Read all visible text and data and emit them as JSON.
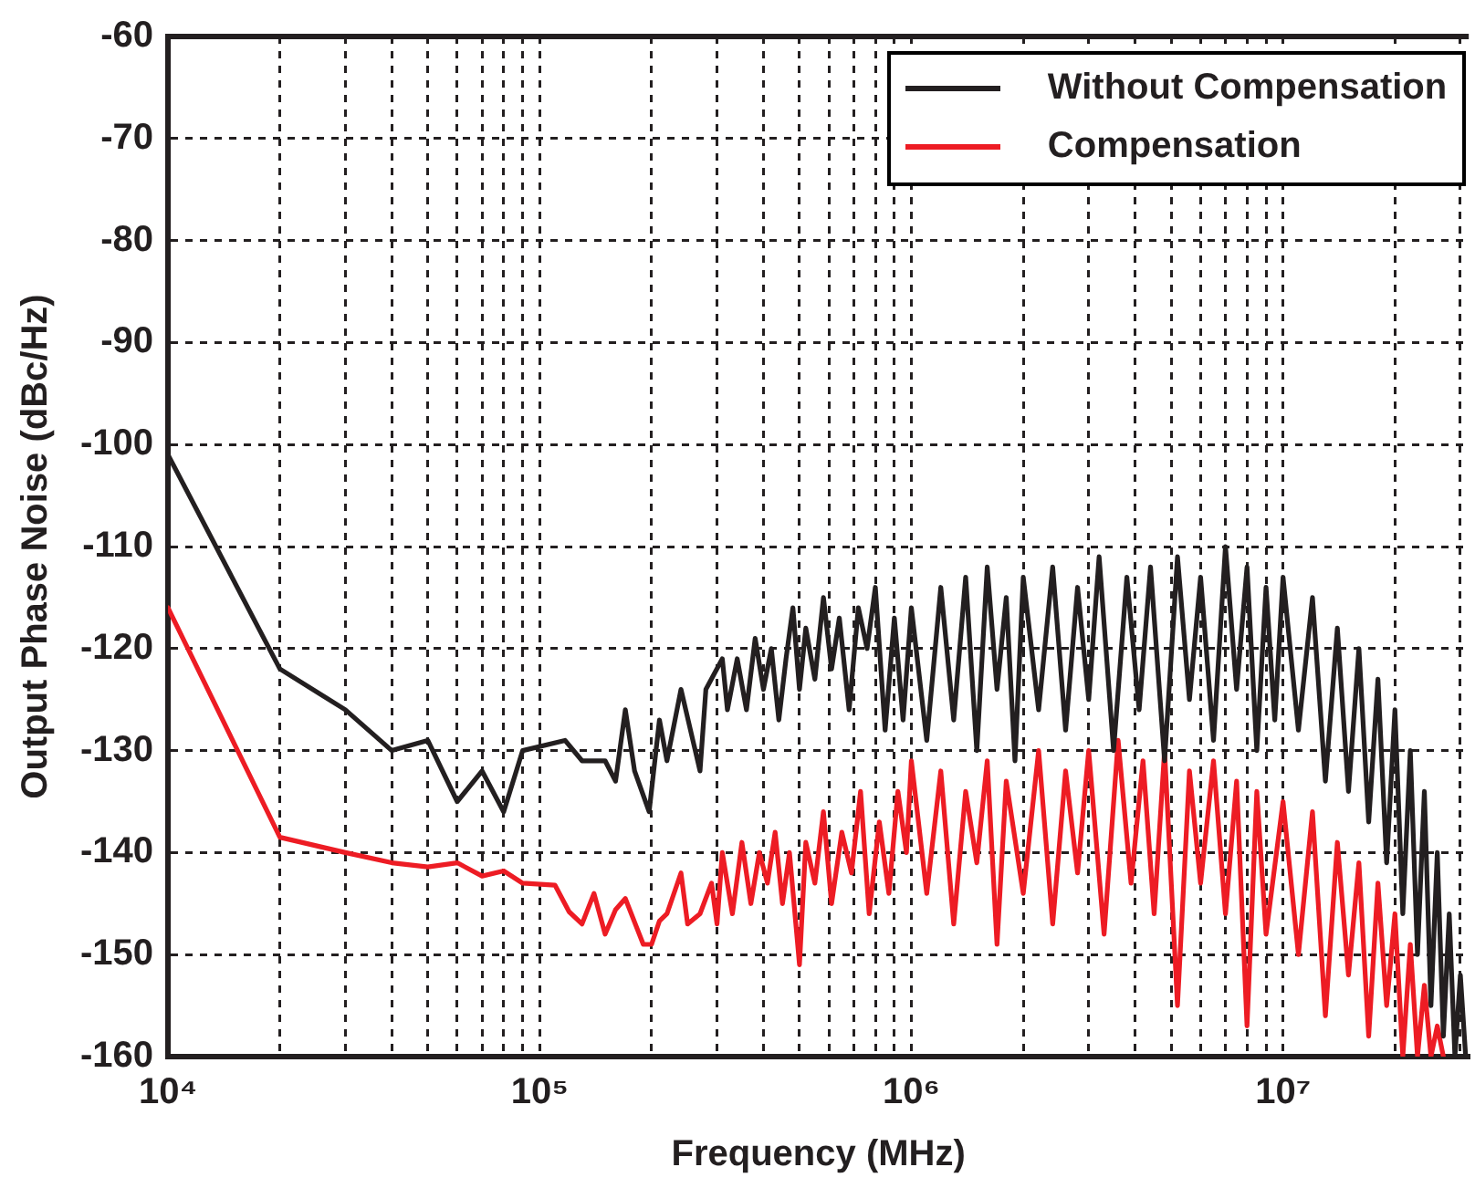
{
  "chart_data": {
    "type": "line",
    "xlabel": "Frequency (MHz)",
    "ylabel": "Output Phase Noise (dBc/Hz)",
    "log": "x",
    "grid": true,
    "legend": "top right",
    "marker": "none",
    "line_style": "solid",
    "xlim": [
      10000,
      31600000
    ],
    "ylim": [
      -160,
      -60
    ],
    "xticks": [
      {
        "value": 10000,
        "label": "10⁴"
      },
      {
        "value": 20000,
        "label": null
      },
      {
        "value": 30000,
        "label": null
      },
      {
        "value": 40000,
        "label": null
      },
      {
        "value": 50000,
        "label": null
      },
      {
        "value": 60000,
        "label": null
      },
      {
        "value": 70000,
        "label": null
      },
      {
        "value": 80000,
        "label": null
      },
      {
        "value": 90000,
        "label": null
      },
      {
        "value": 100000,
        "label": "10⁵"
      },
      {
        "value": 200000,
        "label": null
      },
      {
        "value": 300000,
        "label": null
      },
      {
        "value": 400000,
        "label": null
      },
      {
        "value": 500000,
        "label": null
      },
      {
        "value": 600000,
        "label": null
      },
      {
        "value": 700000,
        "label": null
      },
      {
        "value": 800000,
        "label": null
      },
      {
        "value": 900000,
        "label": null
      },
      {
        "value": 1000000,
        "label": "10⁶"
      },
      {
        "value": 2000000,
        "label": null
      },
      {
        "value": 3000000,
        "label": null
      },
      {
        "value": 4000000,
        "label": null
      },
      {
        "value": 5000000,
        "label": null
      },
      {
        "value": 6000000,
        "label": null
      },
      {
        "value": 7000000,
        "label": null
      },
      {
        "value": 8000000,
        "label": null
      },
      {
        "value": 9000000,
        "label": null
      },
      {
        "value": 10000000,
        "label": "10⁷"
      },
      {
        "value": 20000000,
        "label": null
      },
      {
        "value": 30000000,
        "label": null
      }
    ],
    "yticks": [
      -160,
      -150,
      -140,
      -130,
      -120,
      -110,
      -100,
      -90,
      -80,
      -70,
      -60
    ],
    "series": [
      {
        "name": "Without Compensation",
        "color": "#231f20",
        "x": [
          10000,
          20000,
          30000,
          40000,
          50000,
          60000,
          70000,
          80000,
          90000,
          117000,
          130000,
          150000,
          160000,
          170000,
          180000,
          197000,
          210000,
          220000,
          240000,
          270000,
          280000,
          310000,
          320000,
          340000,
          360000,
          380000,
          400000,
          420000,
          440000,
          460000,
          480000,
          500000,
          520000,
          550000,
          580000,
          610000,
          640000,
          680000,
          720000,
          760000,
          800000,
          850000,
          900000,
          950000,
          1000000,
          1100000,
          1200000,
          1300000,
          1400000,
          1500000,
          1600000,
          1700000,
          1800000,
          1900000,
          2000000,
          2200000,
          2400000,
          2600000,
          2800000,
          3000000,
          3200000,
          3500000,
          3800000,
          4100000,
          4400000,
          4800000,
          5200000,
          5600000,
          6000000,
          6500000,
          7000000,
          7500000,
          8000000,
          8500000,
          9000000,
          9500000,
          10000000,
          11000000,
          12000000,
          13000000,
          14000000,
          15000000,
          16000000,
          17000000,
          18000000,
          19000000,
          20000000,
          21000000,
          22000000,
          23000000,
          24000000,
          25000000,
          26000000,
          27000000,
          28000000,
          29000000,
          30000000,
          31000000
        ],
        "values": [
          -101,
          -122,
          -126,
          -130,
          -129,
          -135,
          -132,
          -136,
          -130,
          -129,
          -131,
          -131,
          -133,
          -126,
          -132,
          -136,
          -127,
          -131,
          -124,
          -132,
          -124,
          -121,
          -126,
          -121,
          -126,
          -119,
          -124,
          -120,
          -127,
          -121,
          -116,
          -124,
          -118,
          -123,
          -115,
          -122,
          -117,
          -126,
          -116,
          -120,
          -114,
          -128,
          -117,
          -127,
          -116,
          -129,
          -114,
          -127,
          -113,
          -130,
          -112,
          -124,
          -115,
          -131,
          -113,
          -126,
          -112,
          -128,
          -114,
          -125,
          -111,
          -130,
          -113,
          -126,
          -112,
          -131,
          -111,
          -125,
          -113,
          -129,
          -110,
          -124,
          -112,
          -130,
          -114,
          -127,
          -113,
          -128,
          -115,
          -133,
          -118,
          -134,
          -120,
          -137,
          -123,
          -141,
          -126,
          -146,
          -130,
          -150,
          -134,
          -155,
          -140,
          -158,
          -146,
          -160,
          -152,
          -160
        ]
      },
      {
        "name": "Compensation",
        "color": "#ed1c24",
        "x": [
          10000,
          20000,
          30000,
          40000,
          50000,
          60000,
          70000,
          80000,
          90000,
          110000,
          120000,
          130000,
          140000,
          150000,
          160000,
          170000,
          190000,
          200000,
          210000,
          220000,
          240000,
          250000,
          270000,
          290000,
          300000,
          310000,
          330000,
          350000,
          370000,
          390000,
          410000,
          430000,
          450000,
          470000,
          500000,
          520000,
          550000,
          580000,
          610000,
          650000,
          690000,
          730000,
          770000,
          820000,
          870000,
          920000,
          970000,
          1000000,
          1100000,
          1200000,
          1300000,
          1400000,
          1500000,
          1600000,
          1700000,
          1800000,
          2000000,
          2200000,
          2400000,
          2600000,
          2800000,
          3000000,
          3300000,
          3600000,
          3900000,
          4200000,
          4500000,
          4800000,
          5200000,
          5600000,
          6000000,
          6500000,
          7000000,
          7500000,
          8000000,
          8500000,
          9000000,
          10000000,
          11000000,
          12000000,
          13000000,
          14000000,
          15000000,
          16000000,
          17000000,
          18000000,
          19000000,
          20000000,
          21000000,
          22000000,
          23000000,
          24000000,
          25000000,
          26000000,
          27000000
        ],
        "values": [
          -116,
          -138.5,
          -140,
          -141,
          -141.4,
          -141,
          -142.3,
          -141.8,
          -143,
          -143.2,
          -145.8,
          -147,
          -144,
          -148,
          -145.6,
          -144.5,
          -149,
          -149,
          -146.7,
          -146,
          -142,
          -147,
          -146,
          -143,
          -147,
          -140,
          -146,
          -139,
          -145,
          -140,
          -143,
          -138,
          -145,
          -140,
          -151,
          -139,
          -143,
          -136,
          -145,
          -138,
          -142,
          -134,
          -146,
          -137,
          -144,
          -134,
          -140,
          -131,
          -144,
          -132,
          -147,
          -134,
          -141,
          -131,
          -149,
          -133,
          -144,
          -130,
          -147,
          -132,
          -142,
          -130,
          -148,
          -129,
          -143,
          -131,
          -146,
          -130,
          -155,
          -132,
          -143,
          -131,
          -146,
          -133,
          -157,
          -134,
          -148,
          -135,
          -150,
          -136,
          -156,
          -139,
          -152,
          -141,
          -158,
          -143,
          -155,
          -146,
          -160,
          -149,
          -160,
          -153,
          -160,
          -157,
          -160
        ]
      }
    ]
  }
}
